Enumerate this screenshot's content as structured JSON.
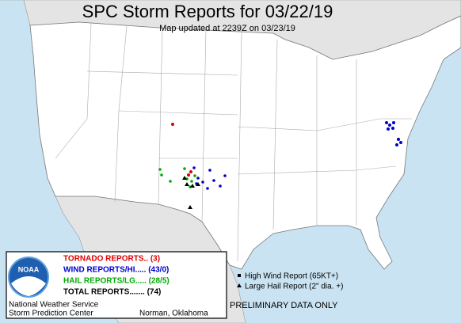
{
  "header": {
    "title": "SPC Storm Reports for 03/22/19",
    "subtitle": "Map updated at 2239Z on 03/23/19"
  },
  "legend": {
    "tornado": "TORNADO REPORTS.. (3)",
    "wind": "WIND REPORTS/HI..... (43/0)",
    "hail": "HAIL REPORTS/LG..... (28/5)",
    "total": "TOTAL REPORTS....... (74)"
  },
  "agency": {
    "logo": "NOAA",
    "line1": "National Weather Service",
    "line2": "Storm Prediction Center",
    "location": "Norman, Oklahoma"
  },
  "key": {
    "wind": "High Wind Report (65KT+)",
    "hail": "Large Hail Report (2\" dia. +)"
  },
  "notice": "PRELIMINARY DATA ONLY"
}
